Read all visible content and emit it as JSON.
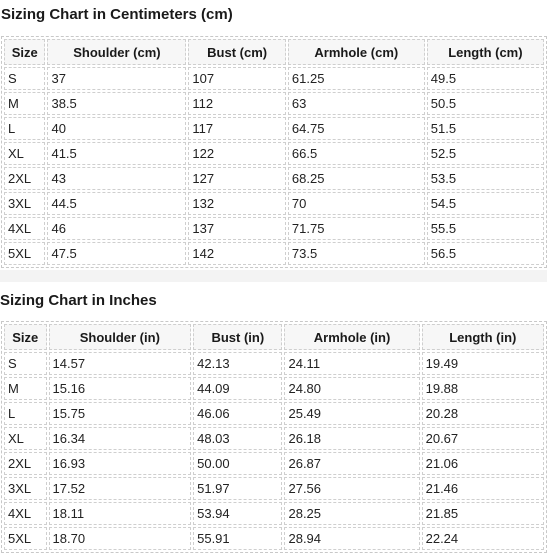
{
  "cm_chart": {
    "title": "Sizing Chart in Centimeters (cm)",
    "headers": [
      "Size",
      "Shoulder (cm)",
      "Bust (cm)",
      "Armhole (cm)",
      "Length (cm)"
    ],
    "rows": [
      [
        "S",
        "37",
        "107",
        "61.25",
        "49.5"
      ],
      [
        "M",
        "38.5",
        "112",
        "63",
        "50.5"
      ],
      [
        "L",
        "40",
        "117",
        "64.75",
        "51.5"
      ],
      [
        "XL",
        "41.5",
        "122",
        "66.5",
        "52.5"
      ],
      [
        "2XL",
        "43",
        "127",
        "68.25",
        "53.5"
      ],
      [
        "3XL",
        "44.5",
        "132",
        "70",
        "54.5"
      ],
      [
        "4XL",
        "46",
        "137",
        "71.75",
        "55.5"
      ],
      [
        "5XL",
        "47.5",
        "142",
        "73.5",
        "56.5"
      ]
    ]
  },
  "in_chart": {
    "title": "Sizing Chart in Inches",
    "headers": [
      "Size",
      "Shoulder (in)",
      "Bust (in)",
      "Armhole (in)",
      "Length (in)"
    ],
    "rows": [
      [
        "S",
        "14.57",
        "42.13",
        "24.11",
        "19.49"
      ],
      [
        "M",
        "15.16",
        "44.09",
        "24.80",
        "19.88"
      ],
      [
        "L",
        "15.75",
        "46.06",
        "25.49",
        "20.28"
      ],
      [
        "XL",
        "16.34",
        "48.03",
        "26.18",
        "20.67"
      ],
      [
        "2XL",
        "16.93",
        "50.00",
        "26.87",
        "21.06"
      ],
      [
        "3XL",
        "17.52",
        "51.97",
        "27.56",
        "21.46"
      ],
      [
        "4XL",
        "18.11",
        "53.94",
        "28.25",
        "21.85"
      ],
      [
        "5XL",
        "18.70",
        "55.91",
        "28.94",
        "22.24"
      ]
    ]
  }
}
